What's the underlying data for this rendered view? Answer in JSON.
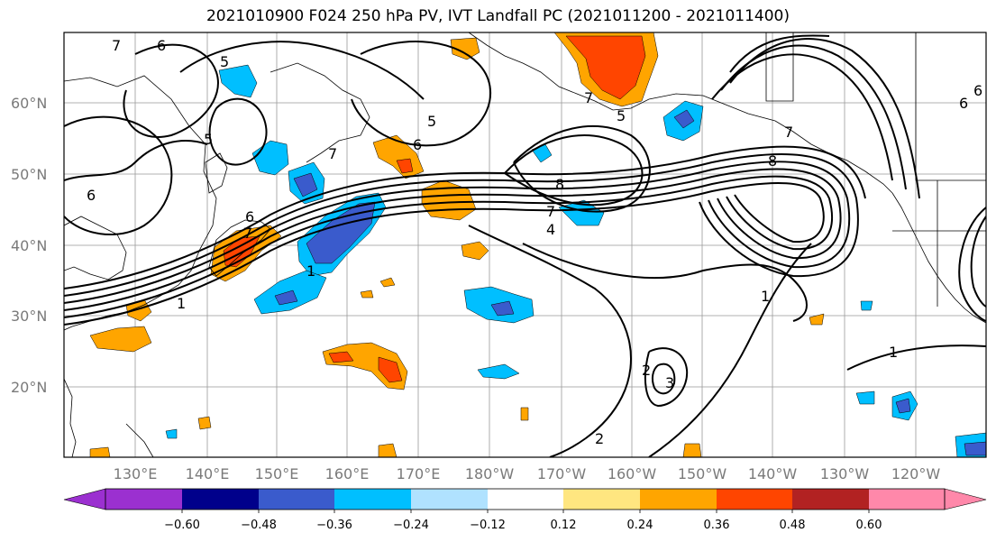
{
  "title": "2021010900 F024 250 hPa PV, IVT Landfall PC (2021011200 - 2021011400)",
  "lat_labels": [
    "60°N",
    "50°N",
    "40°N",
    "30°N",
    "20°N"
  ],
  "lon_labels": [
    "130°E",
    "140°E",
    "150°E",
    "160°E",
    "170°E",
    "180°W",
    "170°W",
    "160°W",
    "150°W",
    "140°W",
    "130°W",
    "120°W"
  ],
  "colorbar": {
    "ticks": [
      "−0.60",
      "−0.48",
      "−0.36",
      "−0.24",
      "−0.12",
      "0.12",
      "0.24",
      "0.36",
      "0.48",
      "0.60"
    ],
    "colors": {
      "under": "#9b30d0",
      "bins": [
        "#9b30d0",
        "#00008b",
        "#3a5bcc",
        "#00bfff",
        "#b0e2ff",
        "#ffffff",
        "#ffe680",
        "#ffa500",
        "#ff4500",
        "#b22222",
        "#ff88aa"
      ],
      "over": "#ff88aa"
    }
  },
  "contour_labels": [
    "7",
    "6",
    "5",
    "5",
    "5",
    "6",
    "7",
    "6",
    "6",
    "7",
    "7",
    "5",
    "8",
    "7",
    "4",
    "1",
    "1",
    "8",
    "7",
    "6",
    "6",
    "1",
    "2",
    "3",
    "2",
    "1"
  ]
}
